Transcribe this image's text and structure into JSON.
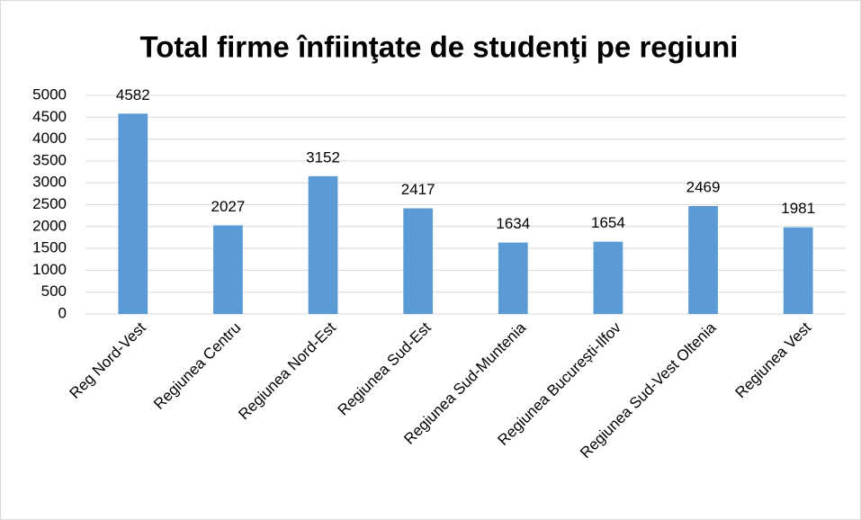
{
  "chart_data": {
    "type": "bar",
    "title": "Total firme înfiinţate de studenţi pe regiuni",
    "categories": [
      "Reg Nord-Vest",
      "Regiunea Centru",
      "Regiunea Nord-Est",
      "Regiunea Sud-Est",
      "Regiunea Sud-Muntenia",
      "Regiunea București-Ilfov",
      "Regiunea Sud-Vest Oltenia",
      "Regiunea Vest"
    ],
    "values": [
      4582,
      2027,
      3152,
      2417,
      1634,
      1654,
      2469,
      1981
    ],
    "color": "#5b9bd5",
    "ylim": [
      0,
      5000
    ],
    "yticks": [
      0,
      500,
      1000,
      1500,
      2000,
      2500,
      3000,
      3500,
      4000,
      4500,
      5000
    ],
    "grid": true
  }
}
